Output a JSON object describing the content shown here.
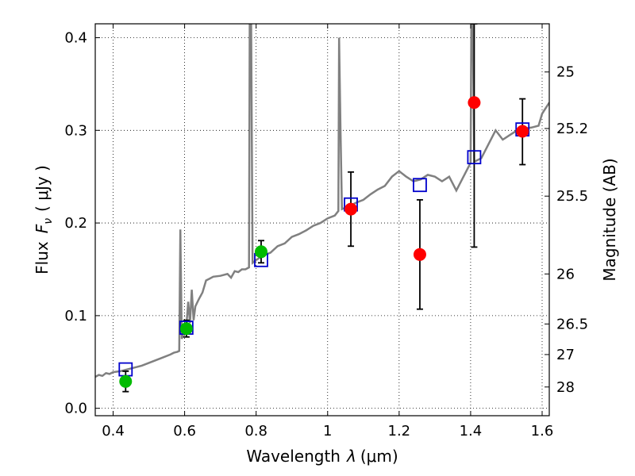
{
  "chart_data": {
    "type": "scatter",
    "xlabel_text": "Wavelength",
    "xlabel_symbol": "λ",
    "xlabel_unit": "(μm)",
    "ylabel_text": "Flux",
    "ylabel_symbol": "F",
    "ylabel_subscript": "ν",
    "ylabel_unit": "( μJy )",
    "y2label": "Magnitude (AB)",
    "xlim": [
      0.35,
      1.62
    ],
    "ylim": [
      -0.008,
      0.415
    ],
    "grid": true,
    "x_ticks": [
      "0.4",
      "0.6",
      "0.8",
      "1",
      "1.2",
      "1.4",
      "1.6"
    ],
    "x_tick_values": [
      0.4,
      0.6,
      0.8,
      1.0,
      1.2,
      1.4,
      1.6
    ],
    "y_ticks": [
      "0.0",
      "0.1",
      "0.2",
      "0.3",
      "0.4"
    ],
    "y_tick_values": [
      0.0,
      0.1,
      0.2,
      0.3,
      0.4
    ],
    "y2_ticks": [
      {
        "label": "25",
        "flux": 0.363
      },
      {
        "label": "25.2",
        "flux": 0.302
      },
      {
        "label": "25.5",
        "flux": 0.229
      },
      {
        "label": "26",
        "flux": 0.145
      },
      {
        "label": "26.5",
        "flux": 0.091
      },
      {
        "label": "27",
        "flux": 0.058
      },
      {
        "label": "28",
        "flux": 0.023
      }
    ],
    "series": [
      {
        "kind": "spectrum",
        "color": "#808080",
        "points": [
          [
            0.35,
            0.034
          ],
          [
            0.36,
            0.036
          ],
          [
            0.37,
            0.035
          ],
          [
            0.38,
            0.038
          ],
          [
            0.39,
            0.037
          ],
          [
            0.4,
            0.039
          ],
          [
            0.42,
            0.04
          ],
          [
            0.44,
            0.042
          ],
          [
            0.46,
            0.044
          ],
          [
            0.48,
            0.046
          ],
          [
            0.5,
            0.049
          ],
          [
            0.52,
            0.052
          ],
          [
            0.54,
            0.055
          ],
          [
            0.56,
            0.058
          ],
          [
            0.57,
            0.06
          ],
          [
            0.58,
            0.061
          ],
          [
            0.585,
            0.062
          ],
          [
            0.588,
            0.193
          ],
          [
            0.592,
            0.075
          ],
          [
            0.6,
            0.085
          ],
          [
            0.605,
            0.09
          ],
          [
            0.61,
            0.115
          ],
          [
            0.615,
            0.092
          ],
          [
            0.62,
            0.128
          ],
          [
            0.625,
            0.095
          ],
          [
            0.63,
            0.11
          ],
          [
            0.64,
            0.118
          ],
          [
            0.65,
            0.125
          ],
          [
            0.66,
            0.138
          ],
          [
            0.67,
            0.14
          ],
          [
            0.68,
            0.142
          ],
          [
            0.7,
            0.143
          ],
          [
            0.72,
            0.145
          ],
          [
            0.73,
            0.141
          ],
          [
            0.74,
            0.148
          ],
          [
            0.75,
            0.147
          ],
          [
            0.76,
            0.15
          ],
          [
            0.77,
            0.15
          ],
          [
            0.78,
            0.152
          ],
          [
            0.782,
            0.415
          ],
          [
            0.786,
            0.415
          ],
          [
            0.79,
            0.157
          ],
          [
            0.8,
            0.16
          ],
          [
            0.82,
            0.165
          ],
          [
            0.84,
            0.168
          ],
          [
            0.86,
            0.175
          ],
          [
            0.88,
            0.178
          ],
          [
            0.9,
            0.185
          ],
          [
            0.92,
            0.188
          ],
          [
            0.94,
            0.192
          ],
          [
            0.96,
            0.197
          ],
          [
            0.98,
            0.2
          ],
          [
            1.0,
            0.205
          ],
          [
            1.02,
            0.208
          ],
          [
            1.03,
            0.213
          ],
          [
            1.032,
            0.4
          ],
          [
            1.036,
            0.3
          ],
          [
            1.04,
            0.215
          ],
          [
            1.06,
            0.218
          ],
          [
            1.08,
            0.222
          ],
          [
            1.1,
            0.225
          ],
          [
            1.12,
            0.231
          ],
          [
            1.14,
            0.236
          ],
          [
            1.16,
            0.24
          ],
          [
            1.18,
            0.25
          ],
          [
            1.2,
            0.256
          ],
          [
            1.22,
            0.25
          ],
          [
            1.24,
            0.245
          ],
          [
            1.26,
            0.247
          ],
          [
            1.28,
            0.252
          ],
          [
            1.3,
            0.25
          ],
          [
            1.32,
            0.245
          ],
          [
            1.34,
            0.25
          ],
          [
            1.36,
            0.235
          ],
          [
            1.38,
            0.25
          ],
          [
            1.4,
            0.265
          ],
          [
            1.402,
            0.415
          ],
          [
            1.406,
            0.415
          ],
          [
            1.41,
            0.266
          ],
          [
            1.43,
            0.27
          ],
          [
            1.45,
            0.285
          ],
          [
            1.47,
            0.3
          ],
          [
            1.49,
            0.29
          ],
          [
            1.51,
            0.295
          ],
          [
            1.53,
            0.3
          ],
          [
            1.55,
            0.302
          ],
          [
            1.57,
            0.303
          ],
          [
            1.59,
            0.305
          ],
          [
            1.6,
            0.318
          ],
          [
            1.62,
            0.33
          ]
        ]
      },
      {
        "kind": "model-flux",
        "marker": "square",
        "color": "#0000cc",
        "points": [
          [
            0.435,
            0.042
          ],
          [
            0.605,
            0.087
          ],
          [
            0.814,
            0.16
          ],
          [
            1.065,
            0.22
          ],
          [
            1.258,
            0.241
          ],
          [
            1.41,
            0.271
          ],
          [
            1.545,
            0.301
          ]
        ]
      },
      {
        "kind": "observed-flux-green",
        "marker": "circle",
        "color": "#00bb00",
        "points": [
          {
            "x": 0.435,
            "y": 0.029,
            "err": 0.011
          },
          {
            "x": 0.605,
            "y": 0.086,
            "err": 0.009
          },
          {
            "x": 0.814,
            "y": 0.169,
            "err": 0.012
          }
        ]
      },
      {
        "kind": "observed-flux-red",
        "marker": "circle",
        "color": "#ff0000",
        "points": [
          {
            "x": 1.065,
            "y": 0.215,
            "err_low": 0.04,
            "err_high": 0.04
          },
          {
            "x": 1.258,
            "y": 0.166,
            "err_low": 0.059,
            "err_high": 0.059
          },
          {
            "x": 1.41,
            "y": 0.33,
            "err_low": 0.156,
            "err_high": 0.085
          },
          {
            "x": 1.545,
            "y": 0.299,
            "err_low": 0.036,
            "err_high": 0.035
          }
        ]
      }
    ]
  }
}
